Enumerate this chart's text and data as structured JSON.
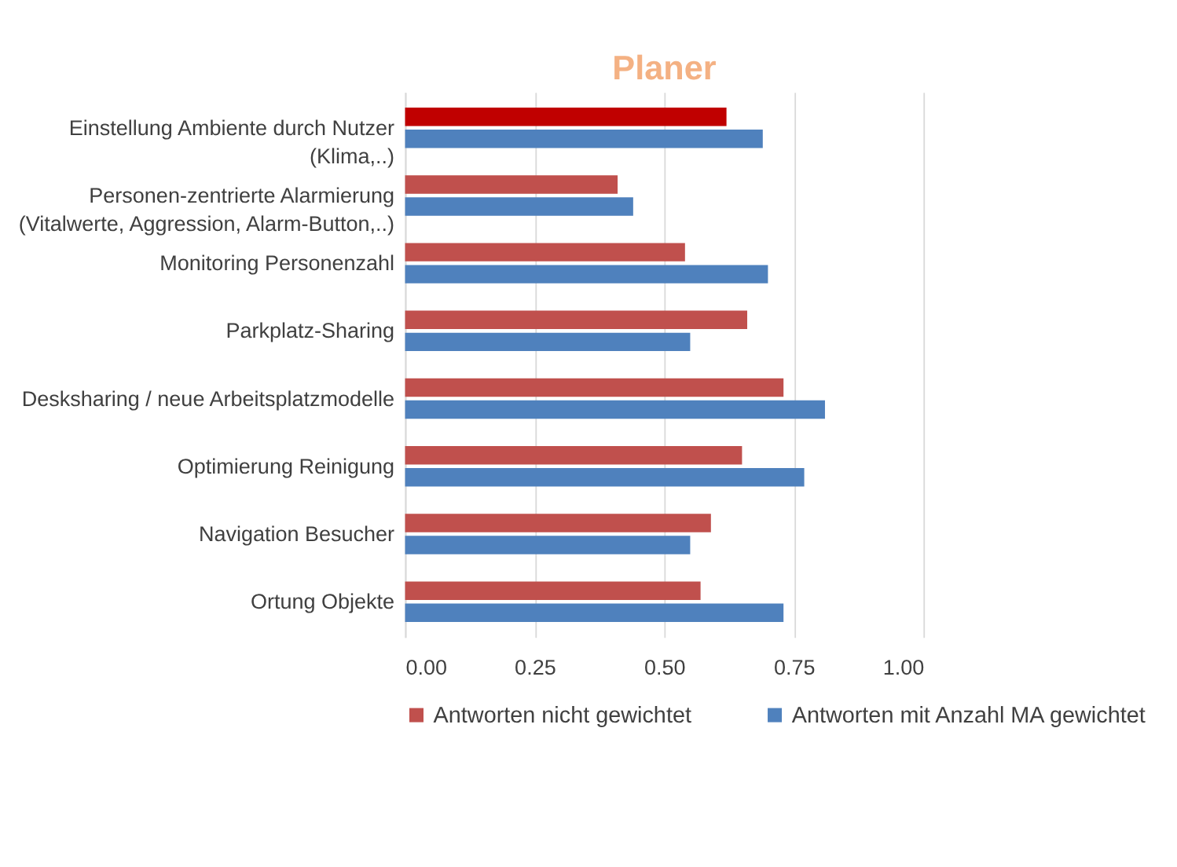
{
  "chart_data": {
    "type": "bar",
    "orientation": "horizontal",
    "title": "Planer",
    "categories": [
      "Einstellung Ambiente durch Nutzer\n(Klima,..)",
      "Personen-zentrierte Alarmierung\n(Vitalwerte, Aggression, Alarm-Button,..)",
      "Monitoring Personenzahl",
      "Parkplatz-Sharing",
      "Desksharing / neue Arbeitsplatzmodelle",
      "Optimierung Reinigung",
      "Navigation Besucher",
      "Ortung Objekte"
    ],
    "series": [
      {
        "name": "Antworten nicht gewichtet",
        "color": "#c0504d",
        "colors": [
          "#c00000",
          "#c0504d",
          "#c0504d",
          "#c0504d",
          "#c0504d",
          "#c0504d",
          "#c0504d",
          "#c0504d"
        ],
        "values": [
          0.62,
          0.41,
          0.54,
          0.66,
          0.73,
          0.65,
          0.59,
          0.57
        ]
      },
      {
        "name": "Antworten mit Anzahl MA gewichtet",
        "color": "#4f81bd",
        "values": [
          0.69,
          0.44,
          0.7,
          0.55,
          0.81,
          0.77,
          0.55,
          0.73
        ]
      }
    ],
    "xlim": [
      0,
      1
    ],
    "xticks": [
      {
        "value": 0,
        "label": "0.00"
      },
      {
        "value": 0.25,
        "label": "0.25"
      },
      {
        "value": 0.5,
        "label": "0.50"
      },
      {
        "value": 0.75,
        "label": "0.75"
      },
      {
        "value": 1,
        "label": "1.00"
      }
    ],
    "grid": "x",
    "legend": "bottom"
  }
}
